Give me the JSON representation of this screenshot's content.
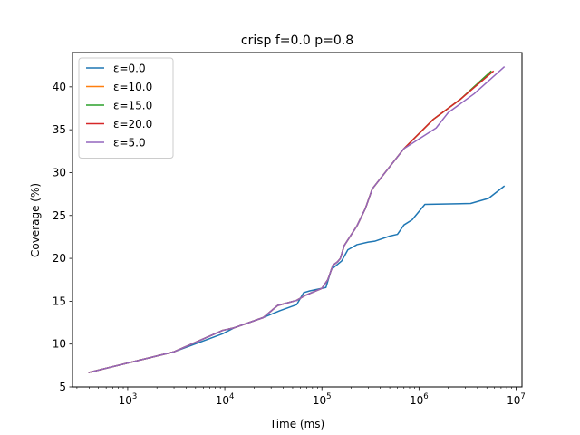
{
  "chart_data": {
    "type": "line",
    "title": "crisp f=0.0 p=0.8",
    "xlabel": "Time (ms)",
    "ylabel": "Coverage (%)",
    "xscale": "log",
    "xlim": [
      270,
      11500000
    ],
    "ylim": [
      5,
      44
    ],
    "legend_position": "top-left",
    "grid": false,
    "x_ticks": [
      {
        "value": 1000,
        "base": "10",
        "exp": "3"
      },
      {
        "value": 10000,
        "base": "10",
        "exp": "4"
      },
      {
        "value": 100000,
        "base": "10",
        "exp": "5"
      },
      {
        "value": 1000000,
        "base": "10",
        "exp": "6"
      },
      {
        "value": 10000000,
        "base": "10",
        "exp": "7"
      }
    ],
    "y_ticks": [
      {
        "value": 5,
        "label": "5"
      },
      {
        "value": 10,
        "label": "10"
      },
      {
        "value": 15,
        "label": "15"
      },
      {
        "value": 20,
        "label": "20"
      },
      {
        "value": 25,
        "label": "25"
      },
      {
        "value": 30,
        "label": "30"
      },
      {
        "value": 35,
        "label": "35"
      },
      {
        "value": 40,
        "label": "40"
      }
    ],
    "series": [
      {
        "name": "ε=0.0",
        "color": "#1f77b4",
        "points": [
          [
            400,
            6.7
          ],
          [
            3000,
            9.1
          ],
          [
            9500,
            11.2
          ],
          [
            12500,
            11.9
          ],
          [
            25000,
            13.1
          ],
          [
            37000,
            13.9
          ],
          [
            55000,
            14.6
          ],
          [
            65000,
            16.0
          ],
          [
            75000,
            16.2
          ],
          [
            110000,
            16.6
          ],
          [
            125000,
            18.7
          ],
          [
            145000,
            19.3
          ],
          [
            160000,
            19.7
          ],
          [
            185000,
            21.0
          ],
          [
            230000,
            21.6
          ],
          [
            300000,
            21.9
          ],
          [
            350000,
            22.0
          ],
          [
            500000,
            22.6
          ],
          [
            600000,
            22.8
          ],
          [
            700000,
            23.9
          ],
          [
            850000,
            24.5
          ],
          [
            1150000,
            26.3
          ],
          [
            3400000,
            26.4
          ],
          [
            5200000,
            27.0
          ],
          [
            7500000,
            28.4
          ]
        ]
      },
      {
        "name": "ε=10.0",
        "color": "#ff7f0e",
        "points": [
          [
            400,
            6.7
          ],
          [
            3000,
            9.1
          ],
          [
            9500,
            11.6
          ],
          [
            12500,
            11.9
          ],
          [
            25000,
            13.1
          ],
          [
            35000,
            14.5
          ],
          [
            55000,
            15.1
          ],
          [
            68000,
            15.7
          ],
          [
            100000,
            16.5
          ],
          [
            115000,
            17.5
          ],
          [
            130000,
            19.2
          ],
          [
            145000,
            19.6
          ],
          [
            155000,
            20.0
          ],
          [
            170000,
            21.5
          ],
          [
            230000,
            23.8
          ],
          [
            280000,
            25.8
          ],
          [
            330000,
            28.1
          ],
          [
            700000,
            32.8
          ],
          [
            1400000,
            36.2
          ],
          [
            2700000,
            38.6
          ],
          [
            5500000,
            41.8
          ]
        ]
      },
      {
        "name": "ε=15.0",
        "color": "#2ca02c",
        "points": [
          [
            400,
            6.7
          ],
          [
            3000,
            9.1
          ],
          [
            9500,
            11.6
          ],
          [
            12500,
            11.9
          ],
          [
            25000,
            13.1
          ],
          [
            35000,
            14.5
          ],
          [
            55000,
            15.1
          ],
          [
            68000,
            15.7
          ],
          [
            100000,
            16.5
          ],
          [
            115000,
            17.5
          ],
          [
            130000,
            19.2
          ],
          [
            145000,
            19.6
          ],
          [
            155000,
            20.0
          ],
          [
            170000,
            21.5
          ],
          [
            230000,
            23.8
          ],
          [
            280000,
            25.8
          ],
          [
            330000,
            28.1
          ],
          [
            700000,
            32.8
          ],
          [
            1400000,
            36.2
          ],
          [
            2700000,
            38.6
          ],
          [
            5500000,
            41.8
          ]
        ]
      },
      {
        "name": "ε=20.0",
        "color": "#d62728",
        "points": [
          [
            400,
            6.7
          ],
          [
            3000,
            9.1
          ],
          [
            9500,
            11.6
          ],
          [
            12500,
            11.9
          ],
          [
            25000,
            13.1
          ],
          [
            35000,
            14.5
          ],
          [
            55000,
            15.1
          ],
          [
            68000,
            15.7
          ],
          [
            100000,
            16.5
          ],
          [
            115000,
            17.5
          ],
          [
            130000,
            19.2
          ],
          [
            145000,
            19.6
          ],
          [
            155000,
            20.0
          ],
          [
            170000,
            21.5
          ],
          [
            230000,
            23.8
          ],
          [
            280000,
            25.8
          ],
          [
            330000,
            28.1
          ],
          [
            700000,
            32.8
          ],
          [
            1400000,
            36.2
          ],
          [
            2700000,
            38.6
          ],
          [
            5800000,
            41.8
          ]
        ]
      },
      {
        "name": "ε=5.0",
        "color": "#9467bd",
        "points": [
          [
            400,
            6.7
          ],
          [
            3000,
            9.1
          ],
          [
            9500,
            11.6
          ],
          [
            12500,
            11.9
          ],
          [
            25000,
            13.1
          ],
          [
            35000,
            14.5
          ],
          [
            55000,
            15.1
          ],
          [
            68000,
            15.7
          ],
          [
            100000,
            16.5
          ],
          [
            115000,
            17.5
          ],
          [
            130000,
            19.2
          ],
          [
            145000,
            19.6
          ],
          [
            155000,
            20.0
          ],
          [
            170000,
            21.5
          ],
          [
            230000,
            23.8
          ],
          [
            280000,
            25.8
          ],
          [
            330000,
            28.1
          ],
          [
            700000,
            32.8
          ],
          [
            1500000,
            35.2
          ],
          [
            2000000,
            37.0
          ],
          [
            3700000,
            39.2
          ],
          [
            7500000,
            42.3
          ]
        ]
      }
    ]
  }
}
